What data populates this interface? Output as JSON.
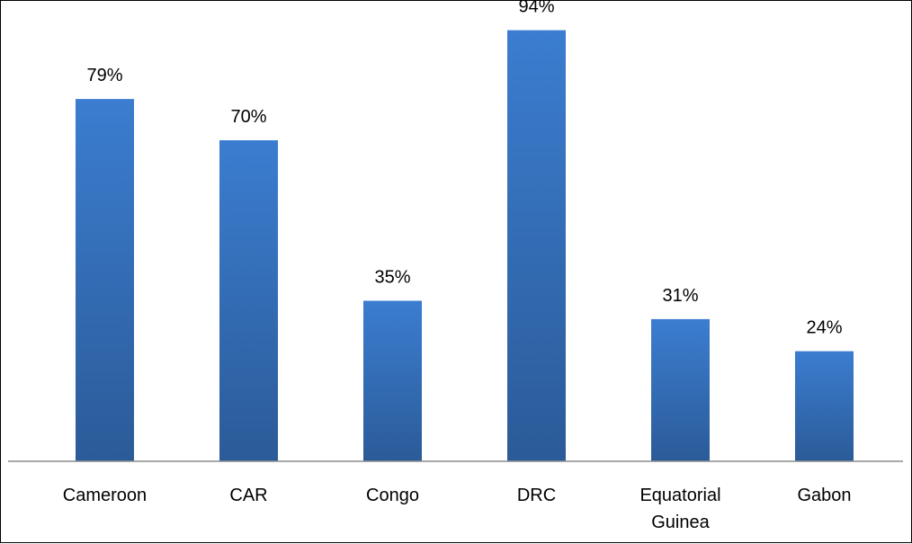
{
  "chart_data": {
    "type": "bar",
    "categories": [
      [
        "Cameroon"
      ],
      [
        "CAR"
      ],
      [
        "Congo"
      ],
      [
        "DRC"
      ],
      [
        "Equatorial",
        "Guinea"
      ],
      [
        "Gabon"
      ]
    ],
    "values": [
      79,
      70,
      35,
      94,
      31,
      24
    ],
    "data_labels": [
      "79%",
      "70%",
      "35%",
      "94%",
      "31%",
      "24%"
    ],
    "unit": "%",
    "ylim": [
      0,
      100
    ],
    "grid": false,
    "legend": "none",
    "bar_color_top": "#3b7dd0",
    "bar_color_bottom": "#2b5b98",
    "axis_color": "#8c8c8c"
  }
}
